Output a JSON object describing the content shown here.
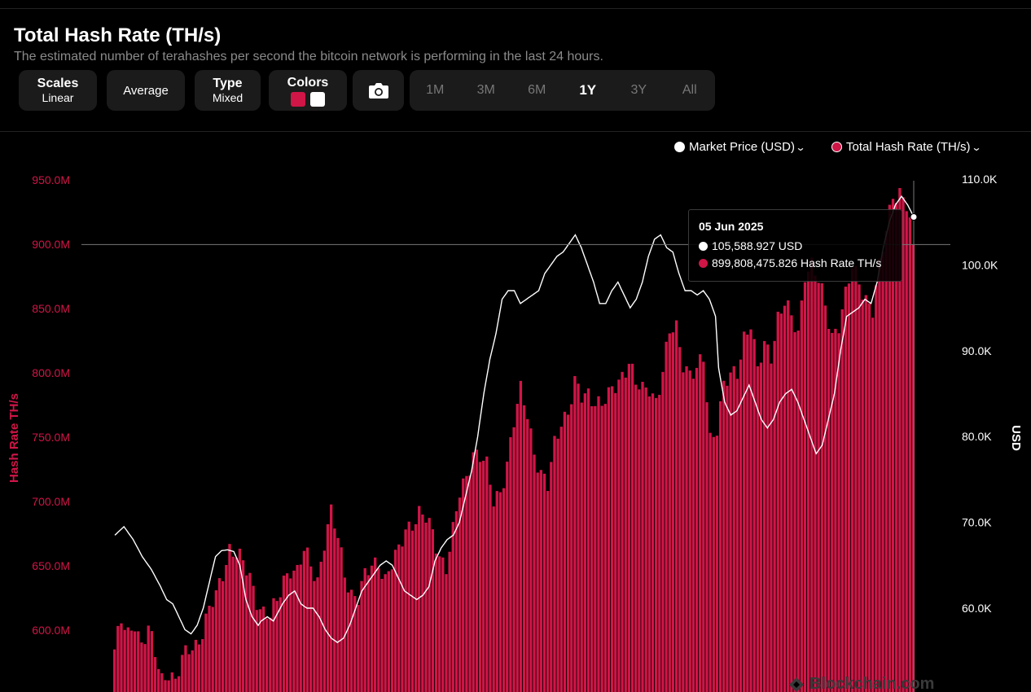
{
  "header": {
    "title": "Total Hash Rate (TH/s)",
    "subtitle": "The estimated number of terahashes per second the bitcoin network is performing in the last 24 hours."
  },
  "controls": {
    "scales_label": "Scales",
    "scales_value": "Linear",
    "average_label": "Average",
    "type_label": "Type",
    "type_value": "Mixed",
    "colors_label": "Colors",
    "colors": [
      "#d01547",
      "#ffffff"
    ],
    "camera_icon": "camera-icon"
  },
  "ranges": [
    "1M",
    "3M",
    "6M",
    "1Y",
    "3Y",
    "All"
  ],
  "active_range": "1Y",
  "legend": {
    "price": "Market Price (USD)",
    "hash": "Total Hash Rate (TH/s)"
  },
  "tooltip": {
    "date": "05 Jun 2025",
    "price": "105,588.927 USD",
    "hash": "899,808,475.826 Hash Rate TH/s"
  },
  "watermark": "Blockchain.com",
  "chart_data": {
    "type": "bar",
    "left_axis": {
      "label": "Hash Rate TH/s",
      "ticks": [
        "950.0M",
        "900.0M",
        "850.0M",
        "800.0M",
        "750.0M",
        "700.0M",
        "650.0M",
        "600.0M"
      ],
      "tick_values": [
        950,
        900,
        850,
        800,
        750,
        700,
        650,
        600
      ],
      "range": [
        550,
        955
      ],
      "color": "#d01547"
    },
    "right_axis": {
      "label": "USD",
      "ticks": [
        "110.0K",
        "100.0K",
        "90.0K",
        "80.0K",
        "70.0K",
        "60.0K"
      ],
      "tick_values": [
        110,
        100,
        90,
        80,
        70,
        60
      ],
      "range": [
        50,
        110
      ]
    },
    "hash_series": {
      "name": "Total Hash Rate (TH/s)",
      "color": "#d01547",
      "keypoints": [
        [
          0,
          585
        ],
        [
          2,
          605
        ],
        [
          4,
          595
        ],
        [
          6,
          608
        ],
        [
          8,
          590
        ],
        [
          10,
          600
        ],
        [
          12,
          580
        ],
        [
          14,
          562
        ],
        [
          16,
          570
        ],
        [
          18,
          560
        ],
        [
          20,
          575
        ],
        [
          22,
          585
        ],
        [
          24,
          590
        ],
        [
          26,
          600
        ],
        [
          28,
          615
        ],
        [
          30,
          625
        ],
        [
          32,
          645
        ],
        [
          34,
          665
        ],
        [
          36,
          660
        ],
        [
          38,
          650
        ],
        [
          40,
          640
        ],
        [
          42,
          625
        ],
        [
          44,
          615
        ],
        [
          46,
          610
        ],
        [
          48,
          620
        ],
        [
          50,
          640
        ],
        [
          52,
          650
        ],
        [
          54,
          645
        ],
        [
          56,
          660
        ],
        [
          58,
          650
        ],
        [
          60,
          640
        ],
        [
          62,
          670
        ],
        [
          64,
          690
        ],
        [
          66,
          670
        ],
        [
          68,
          645
        ],
        [
          70,
          630
        ],
        [
          72,
          625
        ],
        [
          74,
          640
        ],
        [
          76,
          650
        ],
        [
          78,
          655
        ],
        [
          80,
          640
        ],
        [
          82,
          650
        ],
        [
          84,
          660
        ],
        [
          86,
          680
        ],
        [
          88,
          685
        ],
        [
          90,
          690
        ],
        [
          92,
          685
        ],
        [
          94,
          675
        ],
        [
          96,
          660
        ],
        [
          98,
          650
        ],
        [
          100,
          675
        ],
        [
          102,
          705
        ],
        [
          104,
          720
        ],
        [
          106,
          740
        ],
        [
          108,
          735
        ],
        [
          110,
          725
        ],
        [
          112,
          700
        ],
        [
          114,
          710
        ],
        [
          116,
          730
        ],
        [
          118,
          760
        ],
        [
          120,
          785
        ],
        [
          122,
          770
        ],
        [
          124,
          740
        ],
        [
          126,
          720
        ],
        [
          128,
          710
        ],
        [
          130,
          745
        ],
        [
          132,
          765
        ],
        [
          134,
          770
        ],
        [
          136,
          790
        ],
        [
          138,
          780
        ],
        [
          140,
          785
        ],
        [
          142,
          780
        ],
        [
          144,
          775
        ],
        [
          146,
          780
        ],
        [
          148,
          790
        ],
        [
          150,
          800
        ],
        [
          152,
          810
        ],
        [
          154,
          790
        ],
        [
          156,
          785
        ],
        [
          158,
          790
        ],
        [
          160,
          780
        ],
        [
          162,
          800
        ],
        [
          164,
          830
        ],
        [
          166,
          835
        ],
        [
          168,
          810
        ],
        [
          170,
          800
        ],
        [
          172,
          800
        ],
        [
          174,
          810
        ],
        [
          176,
          750
        ],
        [
          178,
          760
        ],
        [
          180,
          790
        ],
        [
          182,
          795
        ],
        [
          184,
          800
        ],
        [
          186,
          830
        ],
        [
          188,
          840
        ],
        [
          190,
          800
        ],
        [
          192,
          820
        ],
        [
          194,
          815
        ],
        [
          196,
          845
        ],
        [
          198,
          855
        ],
        [
          200,
          840
        ],
        [
          202,
          830
        ],
        [
          204,
          880
        ],
        [
          206,
          885
        ],
        [
          208,
          870
        ],
        [
          210,
          850
        ],
        [
          212,
          830
        ],
        [
          214,
          840
        ],
        [
          216,
          860
        ],
        [
          218,
          880
        ],
        [
          220,
          870
        ],
        [
          222,
          860
        ],
        [
          224,
          850
        ],
        [
          226,
          880
        ],
        [
          228,
          910
        ],
        [
          230,
          940
        ],
        [
          232,
          942
        ],
        [
          234,
          930
        ],
        [
          236,
          900
        ]
      ],
      "last_value": 899.8
    },
    "price_series": {
      "name": "Market Price (USD)",
      "color": "#ffffff",
      "keypoints": [
        [
          0,
          68.5
        ],
        [
          3,
          69.5
        ],
        [
          6,
          68
        ],
        [
          9,
          66
        ],
        [
          12,
          64.5
        ],
        [
          15,
          62.5
        ],
        [
          17,
          61
        ],
        [
          19,
          60.5
        ],
        [
          21,
          59
        ],
        [
          23,
          57.5
        ],
        [
          25,
          57
        ],
        [
          27,
          58
        ],
        [
          29,
          60
        ],
        [
          31,
          63
        ],
        [
          33,
          66
        ],
        [
          35,
          66.7
        ],
        [
          37,
          66.8
        ],
        [
          39,
          66.6
        ],
        [
          41,
          65
        ],
        [
          42,
          63
        ],
        [
          43,
          61
        ],
        [
          45,
          59
        ],
        [
          47,
          58
        ],
        [
          48,
          58.5
        ],
        [
          50,
          59
        ],
        [
          52,
          58.5
        ],
        [
          55,
          60.5
        ],
        [
          57,
          61.5
        ],
        [
          59,
          62
        ],
        [
          61,
          60.5
        ],
        [
          63,
          60
        ],
        [
          65,
          60
        ],
        [
          67,
          59
        ],
        [
          69,
          57.5
        ],
        [
          71,
          56.5
        ],
        [
          73,
          56
        ],
        [
          75,
          56.5
        ],
        [
          77,
          58
        ],
        [
          79,
          60
        ],
        [
          81,
          62
        ],
        [
          83,
          63
        ],
        [
          85,
          64
        ],
        [
          87,
          65
        ],
        [
          89,
          65.5
        ],
        [
          91,
          65
        ],
        [
          93,
          63.5
        ],
        [
          95,
          62
        ],
        [
          97,
          61.5
        ],
        [
          99,
          61
        ],
        [
          101,
          61.5
        ],
        [
          103,
          62.5
        ],
        [
          105,
          65.5
        ],
        [
          107,
          67
        ],
        [
          109,
          68
        ],
        [
          111,
          68.5
        ],
        [
          113,
          70
        ],
        [
          115,
          73
        ],
        [
          117,
          76
        ],
        [
          119,
          80
        ],
        [
          121,
          85
        ],
        [
          123,
          89
        ],
        [
          125,
          92
        ],
        [
          127,
          96
        ],
        [
          129,
          97
        ],
        [
          131,
          97
        ],
        [
          133,
          95.5
        ],
        [
          135,
          96
        ],
        [
          137,
          96.5
        ],
        [
          139,
          97
        ],
        [
          141,
          99
        ],
        [
          143,
          100
        ],
        [
          145,
          101
        ],
        [
          147,
          101.5
        ],
        [
          149,
          102.5
        ],
        [
          151,
          103.5
        ],
        [
          153,
          102
        ],
        [
          155,
          100
        ],
        [
          157,
          98
        ],
        [
          159,
          95.5
        ],
        [
          161,
          95.5
        ],
        [
          163,
          97
        ],
        [
          165,
          98
        ],
        [
          167,
          96.5
        ],
        [
          169,
          95
        ],
        [
          171,
          96
        ],
        [
          173,
          98
        ],
        [
          175,
          101
        ],
        [
          177,
          103
        ],
        [
          179,
          103.5
        ],
        [
          181,
          102
        ],
        [
          183,
          101.5
        ],
        [
          185,
          99
        ],
        [
          187,
          97
        ],
        [
          189,
          97
        ],
        [
          191,
          96.5
        ],
        [
          193,
          97
        ],
        [
          195,
          96
        ],
        [
          197,
          94
        ],
        [
          198,
          88
        ],
        [
          200,
          84
        ],
        [
          202,
          82.5
        ],
        [
          204,
          83
        ],
        [
          206,
          84.5
        ],
        [
          208,
          86
        ],
        [
          210,
          84
        ],
        [
          212,
          82
        ],
        [
          214,
          81
        ],
        [
          216,
          82
        ],
        [
          218,
          84
        ],
        [
          220,
          85
        ],
        [
          222,
          85.5
        ],
        [
          224,
          84
        ],
        [
          226,
          82
        ],
        [
          228,
          80
        ],
        [
          230,
          78
        ],
        [
          232,
          79
        ],
        [
          234,
          82
        ],
        [
          236,
          85
        ],
        [
          238,
          90
        ],
        [
          240,
          94
        ],
        [
          242,
          94.5
        ],
        [
          244,
          95
        ],
        [
          246,
          96
        ],
        [
          248,
          95.5
        ],
        [
          250,
          98
        ],
        [
          252,
          102
        ],
        [
          254,
          105
        ],
        [
          256,
          107
        ],
        [
          258,
          108
        ],
        [
          260,
          107
        ],
        [
          262,
          105.6
        ]
      ],
      "last_value": 105.59
    },
    "crosshair": {
      "hash": 899.8,
      "price": 105.59
    }
  }
}
